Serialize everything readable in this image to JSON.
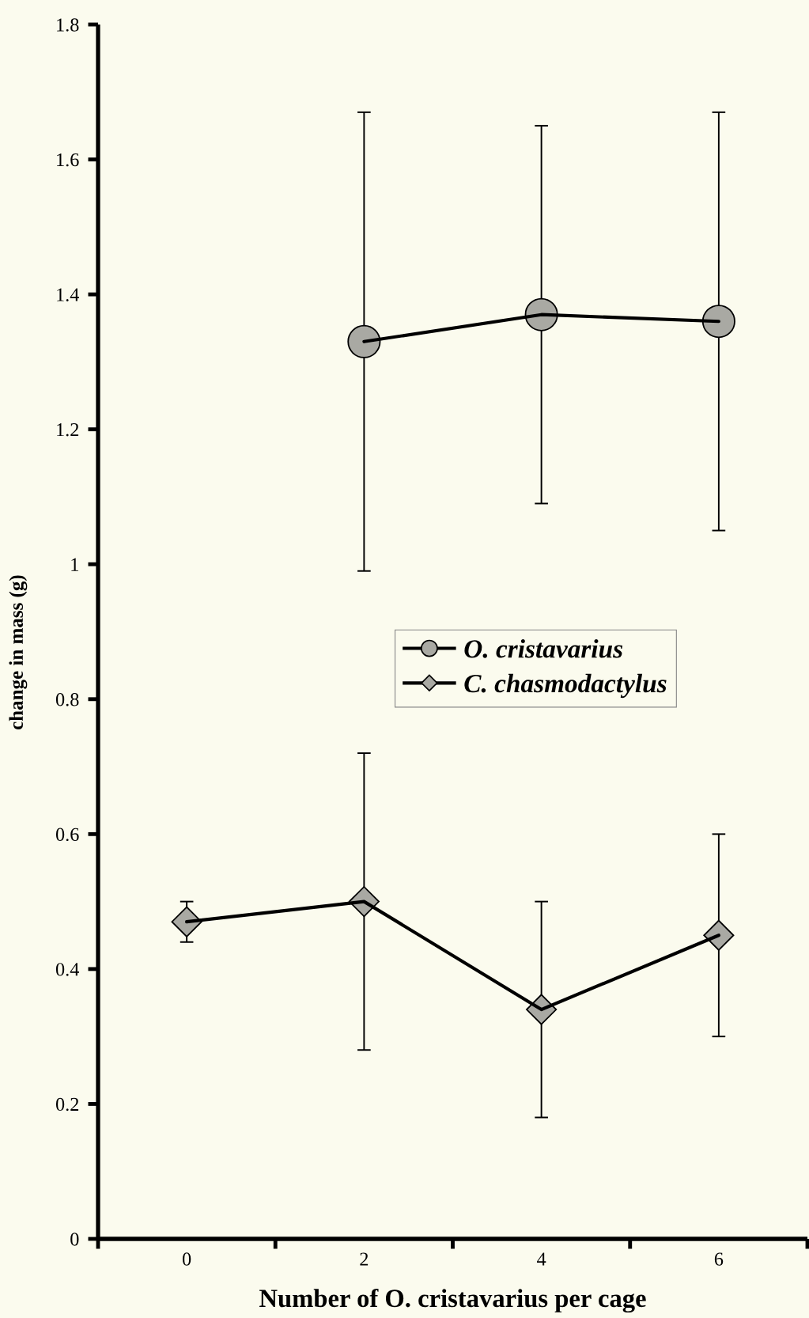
{
  "chart_data": {
    "type": "line",
    "xlabel": "Number of O. cristavarius per cage",
    "ylabel": "change in mass (g)",
    "categories": [
      "0",
      "2",
      "4",
      "6"
    ],
    "ylim": [
      0,
      1.8
    ],
    "yticks": [
      0,
      0.2,
      0.4,
      0.6,
      0.8,
      1,
      1.2,
      1.4,
      1.6,
      1.8
    ],
    "grid": false,
    "legend": "center",
    "line_style": "solid",
    "series": [
      {
        "name": "O. cristavarius",
        "color": "#a9a9a3",
        "marker": "circle",
        "values": [
          null,
          1.33,
          1.37,
          1.36
        ],
        "errors": [
          null,
          0.34,
          0.28,
          0.31
        ]
      },
      {
        "name": "C. chasmodactylus",
        "color": "#a9a9a3",
        "marker": "diamond",
        "values": [
          0.47,
          0.5,
          0.34,
          0.45
        ],
        "errors": [
          0.03,
          0.22,
          0.16,
          0.15
        ]
      }
    ]
  }
}
